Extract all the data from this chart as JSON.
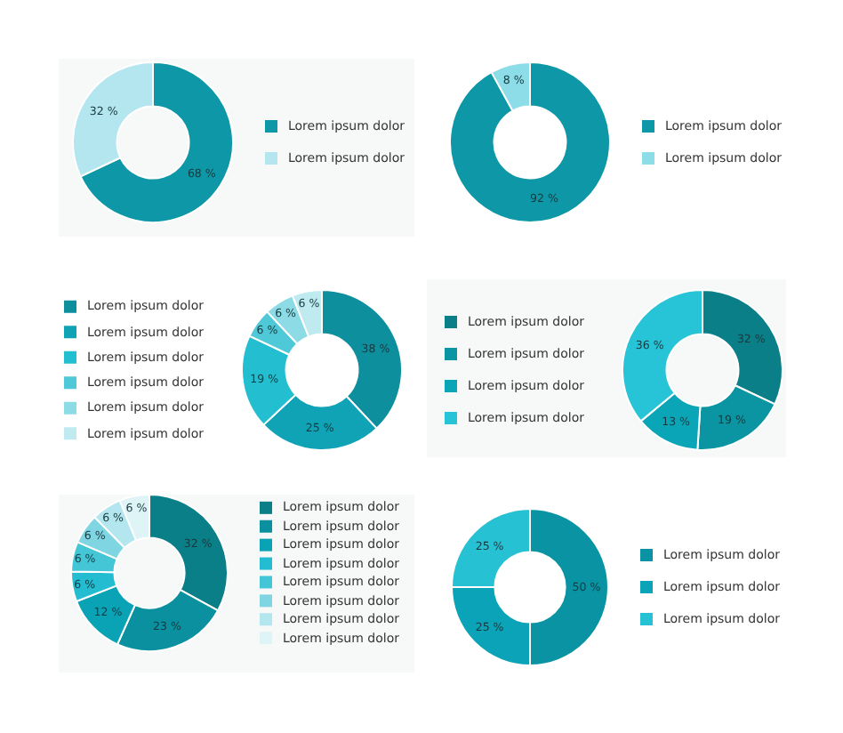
{
  "chart_data": [
    {
      "type": "donut",
      "categories": [
        "Lorem ipsum dolor",
        "Lorem ipsum dolor"
      ],
      "values": [
        68,
        32
      ],
      "colors": [
        "#0e97a6",
        "#b3e6ee"
      ],
      "value_labels": [
        "68 %",
        "32 %"
      ],
      "legend": "right"
    },
    {
      "type": "donut",
      "categories": [
        "Lorem ipsum dolor",
        "Lorem ipsum dolor"
      ],
      "values": [
        92,
        8
      ],
      "colors": [
        "#0e97a6",
        "#8ddde8"
      ],
      "value_labels": [
        "92 %",
        "8 %"
      ],
      "legend": "right"
    },
    {
      "type": "donut",
      "categories": [
        "Lorem ipsum dolor",
        "Lorem ipsum dolor",
        "Lorem ipsum dolor",
        "Lorem ipsum dolor",
        "Lorem ipsum dolor",
        "Lorem ipsum dolor"
      ],
      "values": [
        38,
        25,
        19,
        6,
        6,
        6
      ],
      "colors": [
        "#0e8f9e",
        "#0fa3b5",
        "#23bfd1",
        "#4fc8d8",
        "#8ddbe5",
        "#bfeaf0"
      ],
      "value_labels": [
        "38 %",
        "25 %",
        "19 %",
        "6 %",
        "6 %",
        "6 %"
      ],
      "legend": "left"
    },
    {
      "type": "donut",
      "categories": [
        "Lorem ipsum dolor",
        "Lorem ipsum dolor",
        "Lorem ipsum dolor",
        "Lorem ipsum dolor"
      ],
      "values": [
        32,
        19,
        13,
        36
      ],
      "colors": [
        "#0b7f88",
        "#0b95a3",
        "#0aa6b8",
        "#27c3d6"
      ],
      "value_labels": [
        "32 %",
        "19 %",
        "13 %",
        "36 %"
      ],
      "legend": "left"
    },
    {
      "type": "donut",
      "categories": [
        "Lorem ipsum dolor",
        "Lorem ipsum dolor",
        "Lorem ipsum dolor",
        "Lorem ipsum dolor",
        "Lorem ipsum dolor",
        "Lorem ipsum dolor",
        "Lorem ipsum dolor",
        "Lorem ipsum dolor"
      ],
      "values": [
        32,
        23,
        12,
        6,
        6,
        6,
        6,
        6
      ],
      "colors": [
        "#0b7f88",
        "#0b90a0",
        "#0aa3b5",
        "#23bcd0",
        "#45c6d6",
        "#7fd6e2",
        "#b3e6ee",
        "#def4f7"
      ],
      "value_labels": [
        "32 %",
        "23 %",
        "12 %",
        "6 %",
        "6 %",
        "6 %",
        "6 %",
        "6 %"
      ],
      "legend": "right"
    },
    {
      "type": "donut",
      "categories": [
        "Lorem ipsum dolor",
        "Lorem ipsum dolor",
        "Lorem ipsum dolor"
      ],
      "values": [
        50,
        25,
        25
      ],
      "colors": [
        "#0a93a3",
        "#0aa3b8",
        "#27c1d4"
      ],
      "value_labels": [
        "50 %",
        "25 %",
        "25 %"
      ],
      "legend": "right"
    }
  ]
}
